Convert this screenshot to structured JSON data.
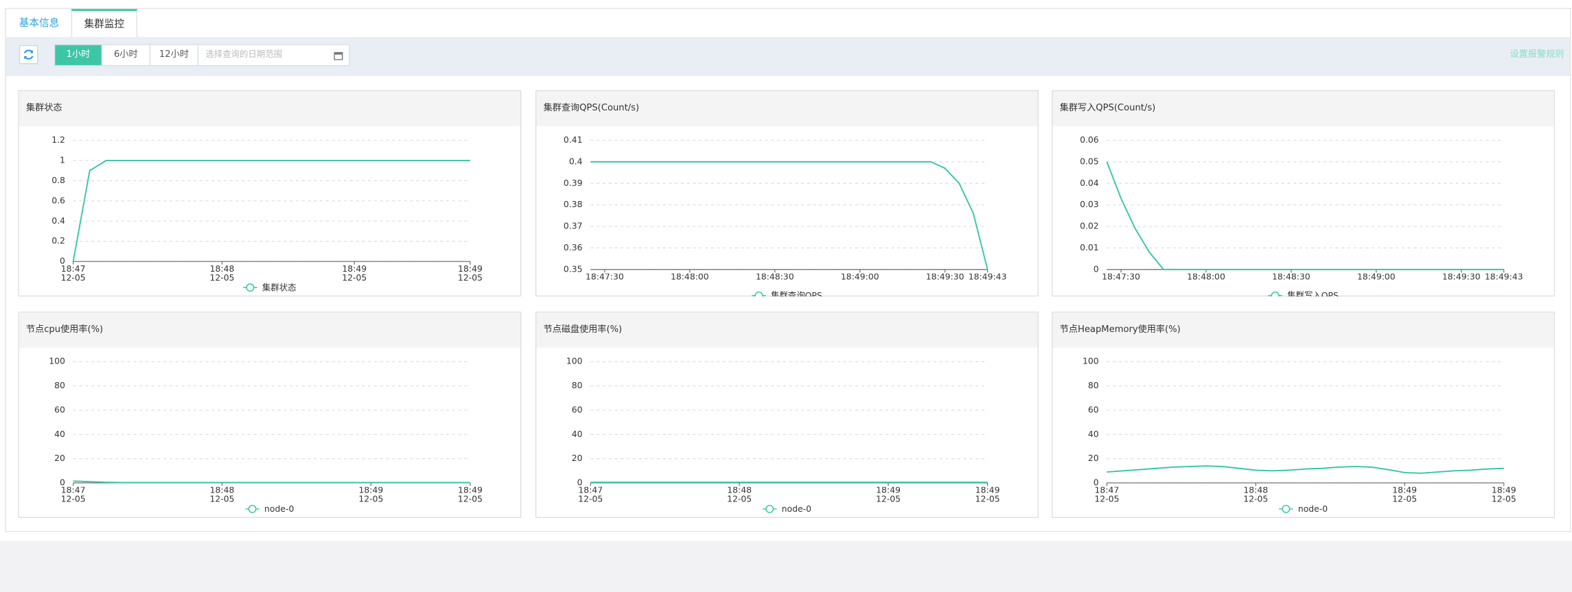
{
  "tabs": [
    "基本信息",
    "集群监控"
  ],
  "toolbar": {
    "ranges": [
      "1小时",
      "6小时",
      "12小时"
    ],
    "date_placeholder": "选择查询的日期范围",
    "alarm_link": "设置报警规则"
  },
  "chart_data": [
    {
      "type": "line",
      "title": "集群状态",
      "categories": [
        "18:47\n12-05",
        null,
        null,
        null,
        null,
        null,
        null,
        null,
        null,
        "18:48\n12-05",
        null,
        null,
        null,
        null,
        null,
        null,
        null,
        "18:49\n12-05",
        null,
        null,
        null,
        null,
        null,
        null,
        "18:49\n12-05"
      ],
      "series": [
        {
          "name": "集群状态",
          "color": "#33c6a5",
          "values": [
            0,
            0.9,
            1,
            1,
            1,
            1,
            1,
            1,
            1,
            1,
            1,
            1,
            1,
            1,
            1,
            1,
            1,
            1,
            1,
            1,
            1,
            1,
            1,
            1,
            1
          ]
        }
      ],
      "ylim": [
        0,
        1.2
      ],
      "yticks": [
        0,
        0.2,
        0.4,
        0.6,
        0.8,
        1,
        1.2
      ],
      "grid": true
    },
    {
      "type": "line",
      "title": "集群查询QPS(Count/s)",
      "categories": [
        null,
        "18:47:30",
        null,
        null,
        null,
        null,
        null,
        "18:48:00",
        null,
        null,
        null,
        null,
        null,
        "18:48:30",
        null,
        null,
        null,
        null,
        null,
        "18:49:00",
        null,
        null,
        null,
        null,
        null,
        "18:49:30",
        null,
        null,
        "18:49:43"
      ],
      "series": [
        {
          "name": "集群查询QPS",
          "color": "#33c6a5",
          "values": [
            0.4,
            0.4,
            0.4,
            0.4,
            0.4,
            0.4,
            0.4,
            0.4,
            0.4,
            0.4,
            0.4,
            0.4,
            0.4,
            0.4,
            0.4,
            0.4,
            0.4,
            0.4,
            0.4,
            0.4,
            0.4,
            0.4,
            0.4,
            0.4,
            0.4,
            0.397,
            0.39,
            0.376,
            0.35
          ]
        }
      ],
      "ylim": [
        0.35,
        0.41
      ],
      "yticks": [
        0.35,
        0.36,
        0.37,
        0.38,
        0.39,
        0.4,
        0.41
      ],
      "grid": true
    },
    {
      "type": "line",
      "title": "集群写入QPS(Count/s)",
      "categories": [
        null,
        "18:47:30",
        null,
        null,
        null,
        null,
        null,
        "18:48:00",
        null,
        null,
        null,
        null,
        null,
        "18:48:30",
        null,
        null,
        null,
        null,
        null,
        "18:49:00",
        null,
        null,
        null,
        null,
        null,
        "18:49:30",
        null,
        null,
        "18:49:43"
      ],
      "series": [
        {
          "name": "集群写入QPS",
          "color": "#33c6a5",
          "values": [
            0.05,
            0.033,
            0.019,
            0.008,
            0,
            0,
            0,
            0,
            0,
            0,
            0,
            0,
            0,
            0,
            0,
            0,
            0,
            0,
            0,
            0,
            0,
            0,
            0,
            0,
            0,
            0,
            0,
            0,
            0
          ]
        }
      ],
      "ylim": [
        0,
        0.06
      ],
      "yticks": [
        0,
        0.01,
        0.02,
        0.03,
        0.04,
        0.05,
        0.06
      ],
      "grid": true
    },
    {
      "type": "line",
      "title": "节点cpu使用率(%)",
      "categories": [
        "18:47\n12-05",
        null,
        null,
        null,
        null,
        null,
        null,
        null,
        null,
        "18:48\n12-05",
        null,
        null,
        null,
        null,
        null,
        null,
        null,
        null,
        "18:49\n12-05",
        null,
        null,
        null,
        null,
        null,
        "18:49\n12-05"
      ],
      "series": [
        {
          "name": "node-0",
          "color": "#33c6a5",
          "values": [
            1.5,
            1,
            0.5,
            0.3,
            0.3,
            0.3,
            0.3,
            0.3,
            0.3,
            0.3,
            0.3,
            0.3,
            0.3,
            0.3,
            0.3,
            0.3,
            0.3,
            0.3,
            0.3,
            0.3,
            0.3,
            0.3,
            0.3,
            0.3,
            0.3
          ]
        }
      ],
      "ylim": [
        0,
        100
      ],
      "yticks": [
        0,
        20,
        40,
        60,
        80,
        100
      ],
      "grid": true
    },
    {
      "type": "line",
      "title": "节点磁盘使用率(%)",
      "categories": [
        "18:47\n12-05",
        null,
        null,
        null,
        null,
        null,
        null,
        null,
        null,
        "18:48\n12-05",
        null,
        null,
        null,
        null,
        null,
        null,
        null,
        null,
        "18:49\n12-05",
        null,
        null,
        null,
        null,
        null,
        "18:49\n12-05"
      ],
      "series": [
        {
          "name": "node-0",
          "color": "#33c6a5",
          "values": [
            0.5,
            0.5,
            0.5,
            0.5,
            0.5,
            0.5,
            0.5,
            0.5,
            0.5,
            0.5,
            0.5,
            0.5,
            0.5,
            0.5,
            0.5,
            0.5,
            0.5,
            0.5,
            0.5,
            0.5,
            0.5,
            0.5,
            0.5,
            0.5,
            0.5
          ]
        }
      ],
      "ylim": [
        0,
        100
      ],
      "yticks": [
        0,
        20,
        40,
        60,
        80,
        100
      ],
      "grid": true
    },
    {
      "type": "line",
      "title": "节点HeapMemory使用率(%)",
      "categories": [
        "18:47\n12-05",
        null,
        null,
        null,
        null,
        null,
        null,
        null,
        null,
        "18:48\n12-05",
        null,
        null,
        null,
        null,
        null,
        null,
        null,
        null,
        "18:49\n12-05",
        null,
        null,
        null,
        null,
        null,
        "18:49\n12-05"
      ],
      "series": [
        {
          "name": "node-0",
          "color": "#33c6a5",
          "values": [
            9,
            10,
            11,
            12,
            13,
            13.5,
            14,
            13.5,
            12,
            10.5,
            10,
            10.5,
            11.5,
            12,
            13,
            13.5,
            13,
            11,
            8.5,
            8,
            9,
            10,
            10.5,
            11.5,
            12
          ]
        }
      ],
      "ylim": [
        0,
        100
      ],
      "yticks": [
        0,
        20,
        40,
        60,
        80,
        100
      ],
      "grid": true
    }
  ]
}
